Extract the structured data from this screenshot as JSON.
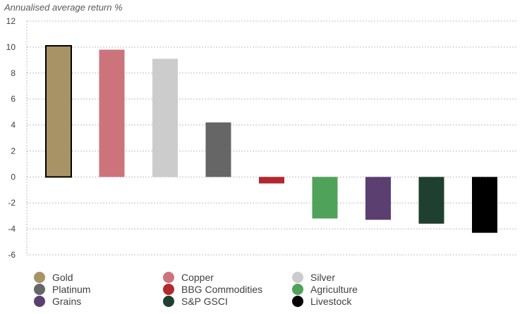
{
  "chart_data": {
    "type": "bar",
    "ylabel": "Annualised average return %",
    "categories": [
      "Gold",
      "Copper",
      "Silver",
      "Platinum",
      "BBG Commodities",
      "Agriculture",
      "Grains",
      "S&P GSCI",
      "Livestock"
    ],
    "values": [
      10.1,
      9.8,
      9.1,
      4.2,
      -0.5,
      -3.2,
      -3.3,
      -3.6,
      -4.3
    ],
    "colors": [
      "#a89367",
      "#cc737b",
      "#cccccc",
      "#666666",
      "#b3272e",
      "#4fa25a",
      "#5b3f71",
      "#1f3f30",
      "#000000"
    ],
    "highlight": "Gold",
    "ylim": [
      -6,
      12
    ],
    "yticks": [
      -6,
      -4,
      -2,
      0,
      2,
      4,
      6,
      8,
      10,
      12
    ],
    "grid": true,
    "legend_position": "bottom"
  }
}
